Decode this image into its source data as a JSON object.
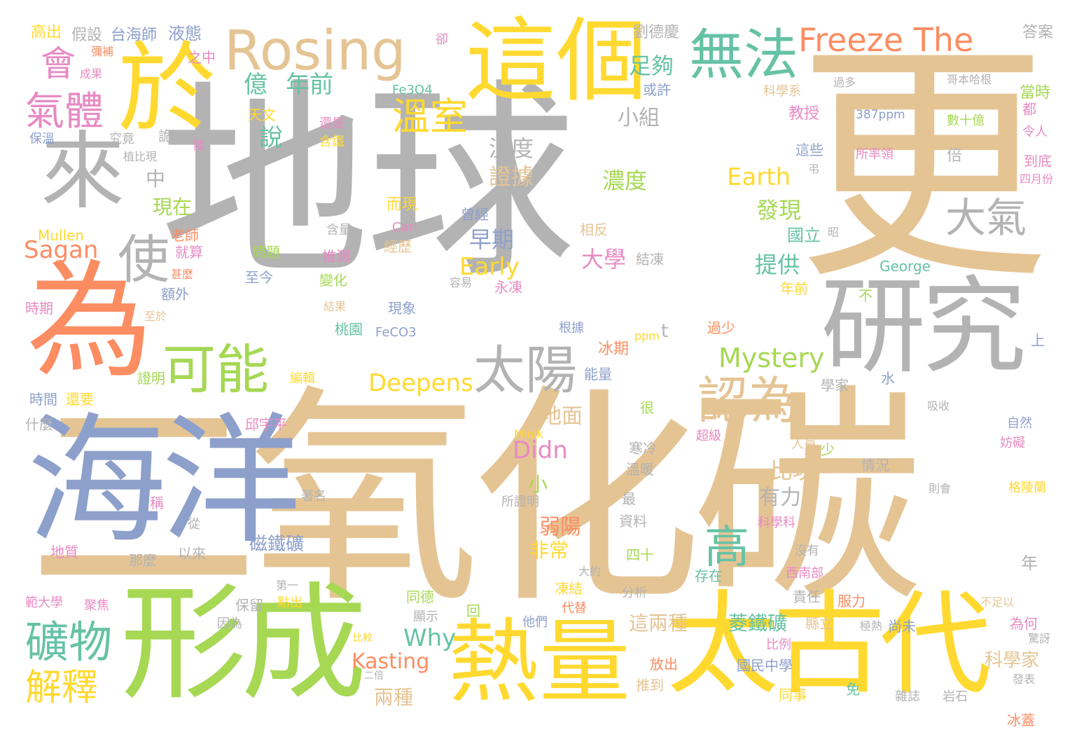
{
  "palette": {
    "gray": "#b3b3b3",
    "tan": "#e5c494",
    "gold": "#ffd92f",
    "orange": "#fc8d62",
    "blue": "#8da0cb",
    "green": "#a6d854",
    "pink": "#e78ac3",
    "teal": "#66c2a5"
  },
  "words": [
    {
      "text": "地球",
      "color": "gray"
    },
    {
      "text": "二氧化碳",
      "color": "tan"
    },
    {
      "text": "更",
      "color": "tan"
    },
    {
      "text": "為",
      "color": "orange"
    },
    {
      "text": "海洋",
      "color": "blue"
    },
    {
      "text": "形成",
      "color": "green"
    },
    {
      "text": "太古代",
      "color": "gold"
    },
    {
      "text": "熱量",
      "color": "gold"
    },
    {
      "text": "研究",
      "color": "gray"
    },
    {
      "text": "這個",
      "color": "gold"
    },
    {
      "text": "於",
      "color": "gold"
    },
    {
      "text": "來",
      "color": "gray"
    },
    {
      "text": "Rosing",
      "color": "tan"
    },
    {
      "text": "無法",
      "color": "teal"
    },
    {
      "text": "Freeze The",
      "color": "orange"
    },
    {
      "text": "可能",
      "color": "green"
    },
    {
      "text": "太陽",
      "color": "gray"
    },
    {
      "text": "認為",
      "color": "tan"
    },
    {
      "text": "礦物",
      "color": "teal"
    },
    {
      "text": "解釋",
      "color": "gold"
    },
    {
      "text": "氣體",
      "color": "pink"
    },
    {
      "text": "會",
      "color": "pink"
    },
    {
      "text": "使",
      "color": "gray"
    },
    {
      "text": "大氣",
      "color": "gray"
    },
    {
      "text": "溫室",
      "color": "gold"
    },
    {
      "text": "高",
      "color": "teal"
    },
    {
      "text": "Mystery",
      "color": "green"
    },
    {
      "text": "Deepens",
      "color": "gold"
    },
    {
      "text": "Earth",
      "color": "gold"
    },
    {
      "text": "Early",
      "color": "gold"
    },
    {
      "text": "Didn",
      "color": "pink"
    },
    {
      "text": "Why",
      "color": "teal"
    },
    {
      "text": "Kasting",
      "color": "orange"
    },
    {
      "text": "Sagan",
      "color": "orange"
    },
    {
      "text": "億",
      "color": "teal"
    },
    {
      "text": "年前",
      "color": "teal"
    },
    {
      "text": "足夠",
      "color": "teal"
    },
    {
      "text": "說",
      "color": "teal"
    },
    {
      "text": "小組",
      "color": "gray"
    },
    {
      "text": "溫度",
      "color": "gray"
    },
    {
      "text": "證據",
      "color": "tan"
    },
    {
      "text": "濃度",
      "color": "green"
    },
    {
      "text": "發現",
      "color": "green"
    },
    {
      "text": "早期",
      "color": "blue"
    },
    {
      "text": "大學",
      "color": "pink"
    },
    {
      "text": "提供",
      "color": "teal"
    },
    {
      "text": "地面",
      "color": "tan"
    },
    {
      "text": "比現",
      "color": "tan"
    },
    {
      "text": "有力",
      "color": "gray"
    },
    {
      "text": "弱陽",
      "color": "orange"
    },
    {
      "text": "非常",
      "color": "gold"
    },
    {
      "text": "磁鐵礦",
      "color": "blue"
    },
    {
      "text": "這兩種",
      "color": "tan"
    },
    {
      "text": "菱鐵礦",
      "color": "teal"
    },
    {
      "text": "兩種",
      "color": "tan"
    },
    {
      "text": "科學家",
      "color": "tan"
    },
    {
      "text": "現在",
      "color": "green"
    },
    {
      "text": "中",
      "color": "gray"
    },
    {
      "text": "小",
      "color": "green"
    },
    {
      "text": "387ppm",
      "color": "blue"
    },
    {
      "text": "數十億",
      "color": "green"
    },
    {
      "text": "高出",
      "color": "gold"
    },
    {
      "text": "假設",
      "color": "gray"
    },
    {
      "text": "台海師",
      "color": "blue"
    },
    {
      "text": "液態",
      "color": "blue"
    },
    {
      "text": "劉德慶",
      "color": "gray"
    },
    {
      "text": "答案",
      "color": "gray"
    },
    {
      "text": "Fe3O4",
      "color": "teal"
    },
    {
      "text": "天文",
      "color": "gold"
    },
    {
      "text": "Mullen",
      "color": "gold"
    },
    {
      "text": "Carl",
      "color": "pink"
    },
    {
      "text": "George",
      "color": "teal"
    },
    {
      "text": "FeCO3",
      "color": "blue"
    },
    {
      "text": "Minik",
      "color": "gold"
    },
    {
      "text": "ppm",
      "color": "gold"
    },
    {
      "text": "t",
      "color": "gray"
    },
    {
      "text": "教授",
      "color": "pink"
    },
    {
      "text": "科學系",
      "color": "tan"
    },
    {
      "text": "或許",
      "color": "blue"
    },
    {
      "text": "這些",
      "color": "blue"
    },
    {
      "text": "所率領",
      "color": "pink"
    },
    {
      "text": "倍",
      "color": "gray"
    },
    {
      "text": "到底",
      "color": "pink"
    },
    {
      "text": "四月份",
      "color": "pink"
    },
    {
      "text": "當時",
      "color": "green"
    },
    {
      "text": "都",
      "color": "pink"
    },
    {
      "text": "令人",
      "color": "pink"
    },
    {
      "text": "國立",
      "color": "teal"
    },
    {
      "text": "結凍",
      "color": "gray"
    },
    {
      "text": "相反",
      "color": "tan"
    },
    {
      "text": "永凍",
      "color": "pink"
    },
    {
      "text": "曾經",
      "color": "blue"
    },
    {
      "text": "經歷",
      "color": "tan"
    },
    {
      "text": "而現",
      "color": "gold"
    },
    {
      "text": "推測",
      "color": "pink"
    },
    {
      "text": "變化",
      "color": "green"
    },
    {
      "text": "現象",
      "color": "blue"
    },
    {
      "text": "桃園",
      "color": "teal"
    },
    {
      "text": "根據",
      "color": "blue"
    },
    {
      "text": "冰期",
      "color": "orange"
    },
    {
      "text": "能量",
      "color": "blue"
    },
    {
      "text": "過少",
      "color": "orange"
    },
    {
      "text": "不",
      "color": "green"
    },
    {
      "text": "上",
      "color": "blue"
    },
    {
      "text": "水",
      "color": "blue"
    },
    {
      "text": "學家",
      "color": "gray"
    },
    {
      "text": "吸收",
      "color": "gray"
    },
    {
      "text": "時期",
      "color": "pink"
    },
    {
      "text": "時間",
      "color": "blue"
    },
    {
      "text": "還要",
      "color": "gold"
    },
    {
      "text": "證明",
      "color": "green"
    },
    {
      "text": "編輯",
      "color": "gold"
    },
    {
      "text": "什麼",
      "color": "gray"
    },
    {
      "text": "邱宇平",
      "color": "pink"
    },
    {
      "text": "老師",
      "color": "orange"
    },
    {
      "text": "就算",
      "color": "pink"
    },
    {
      "text": "甚麼",
      "color": "orange"
    },
    {
      "text": "額外",
      "color": "blue"
    },
    {
      "text": "問題",
      "color": "green"
    },
    {
      "text": "至今",
      "color": "blue"
    },
    {
      "text": "地質",
      "color": "pink"
    },
    {
      "text": "那麼",
      "color": "gray"
    },
    {
      "text": "以來",
      "color": "gray"
    },
    {
      "text": "範大學",
      "color": "pink"
    },
    {
      "text": "聚焦",
      "color": "pink"
    },
    {
      "text": "保留",
      "color": "gray"
    },
    {
      "text": "點出",
      "color": "gold"
    },
    {
      "text": "同德",
      "color": "green"
    },
    {
      "text": "顯示",
      "color": "gray"
    },
    {
      "text": "回",
      "color": "green"
    },
    {
      "text": "他們",
      "color": "blue"
    },
    {
      "text": "代替",
      "color": "orange"
    },
    {
      "text": "凍結",
      "color": "gold"
    },
    {
      "text": "四十",
      "color": "green"
    },
    {
      "text": "分析",
      "color": "gray"
    },
    {
      "text": "存在",
      "color": "teal"
    },
    {
      "text": "責任",
      "color": "gray"
    },
    {
      "text": "服力",
      "color": "orange"
    },
    {
      "text": "縣立",
      "color": "tan"
    },
    {
      "text": "國民中學",
      "color": "blue"
    },
    {
      "text": "尚未",
      "color": "blue"
    },
    {
      "text": "為何",
      "color": "pink"
    },
    {
      "text": "冰蓋",
      "color": "orange"
    },
    {
      "text": "放出",
      "color": "orange"
    },
    {
      "text": "推到",
      "color": "tan"
    },
    {
      "text": "同事",
      "color": "gold"
    },
    {
      "text": "免",
      "color": "teal"
    },
    {
      "text": "雜誌",
      "color": "gray"
    },
    {
      "text": "岩石",
      "color": "gray"
    },
    {
      "text": "發表",
      "color": "gray"
    },
    {
      "text": "比例",
      "color": "pink"
    },
    {
      "text": "大約",
      "color": "gray"
    },
    {
      "text": "第一",
      "color": "gray"
    },
    {
      "text": "因為",
      "color": "gray"
    },
    {
      "text": "所證明",
      "color": "gray"
    },
    {
      "text": "著名",
      "color": "gray"
    },
    {
      "text": "人員",
      "color": "tan"
    },
    {
      "text": "情況",
      "color": "gray"
    },
    {
      "text": "少",
      "color": "green"
    },
    {
      "text": "超級",
      "color": "pink"
    },
    {
      "text": "寒冷",
      "color": "gray"
    },
    {
      "text": "溫暖",
      "color": "gray"
    },
    {
      "text": "最",
      "color": "gray"
    },
    {
      "text": "資料",
      "color": "gray"
    },
    {
      "text": "科學科",
      "color": "pink"
    },
    {
      "text": "沒有",
      "color": "gray"
    },
    {
      "text": "西南部",
      "color": "pink"
    },
    {
      "text": "年",
      "color": "gray"
    },
    {
      "text": "自然",
      "color": "blue"
    },
    {
      "text": "妨礙",
      "color": "pink"
    },
    {
      "text": "格陵蘭",
      "color": "gold"
    },
    {
      "text": "則會",
      "color": "gray"
    },
    {
      "text": "很",
      "color": "green"
    },
    {
      "text": "稱",
      "color": "pink"
    },
    {
      "text": "從",
      "color": "gray"
    },
    {
      "text": "年前",
      "color": "gold"
    },
    {
      "text": "過多",
      "color": "gray"
    },
    {
      "text": "哥本哈根",
      "color": "gray"
    },
    {
      "text": "之中",
      "color": "pink"
    },
    {
      "text": "卻",
      "color": "pink"
    },
    {
      "text": "彌補",
      "color": "orange"
    },
    {
      "text": "成果",
      "color": "pink"
    },
    {
      "text": "保溫",
      "color": "blue"
    },
    {
      "text": "究竟",
      "color": "gray"
    },
    {
      "text": "詭",
      "color": "gray"
    },
    {
      "text": "陸",
      "color": "pink"
    },
    {
      "text": "還是",
      "color": "pink"
    },
    {
      "text": "含鐵",
      "color": "gold"
    },
    {
      "text": "植比現",
      "color": "gray"
    },
    {
      "text": "含量",
      "color": "gray"
    },
    {
      "text": "容易",
      "color": "gray"
    },
    {
      "text": "結果",
      "color": "tan"
    },
    {
      "text": "至於",
      "color": "tan"
    },
    {
      "text": "不足以",
      "color": "tan"
    },
    {
      "text": "極熱",
      "color": "gray"
    },
    {
      "text": "驚訝",
      "color": "gray"
    },
    {
      "text": "弔",
      "color": "gray"
    },
    {
      "text": "昭",
      "color": "gray"
    },
    {
      "text": "比較",
      "color": "gold"
    },
    {
      "text": "二倍",
      "color": "gray"
    }
  ]
}
